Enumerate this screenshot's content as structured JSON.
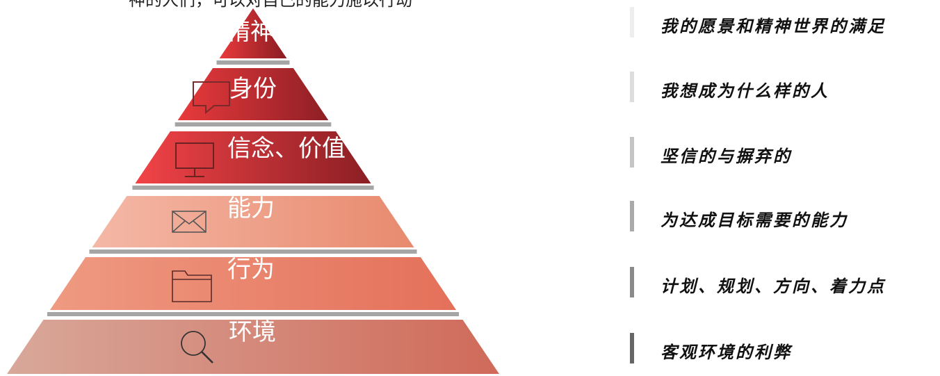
{
  "caption": "神的人们，可以对自己的能力施以行动",
  "tiers": [
    {
      "label": "精神",
      "icon": "none-icon",
      "grad": [
        "#e83a3c",
        "#8a1c22"
      ]
    },
    {
      "label": "身份",
      "icon": "chat-bubble-icon",
      "grad": [
        "#e83a3c",
        "#8e1f25"
      ]
    },
    {
      "label": "信念、价值",
      "icon": "monitor-icon",
      "grad": [
        "#f24347",
        "#8b1f24"
      ]
    },
    {
      "label": "能力",
      "icon": "envelope-icon",
      "grad": [
        "#f4b8a6",
        "#e88a6e"
      ]
    },
    {
      "label": "行为",
      "icon": "folder-icon",
      "grad": [
        "#ef9a82",
        "#e4705a"
      ]
    },
    {
      "label": "环境",
      "icon": "search-icon",
      "grad": [
        "#d8a89a",
        "#d06a5a"
      ]
    }
  ],
  "descriptions": [
    {
      "text": "我的愿景和精神世界的满足",
      "bar": "#eeeeee"
    },
    {
      "text": "我想成为什么样的人",
      "bar": "#dddddd"
    },
    {
      "text": "坚信的与摒弃的",
      "bar": "#c4c4c4"
    },
    {
      "text": "为达成目标需要的能力",
      "bar": "#aaaaaa"
    },
    {
      "text": "计划、规划、方向、着力点",
      "bar": "#8a8a8a"
    },
    {
      "text": "客观环境的利弊",
      "bar": "#666666"
    }
  ]
}
